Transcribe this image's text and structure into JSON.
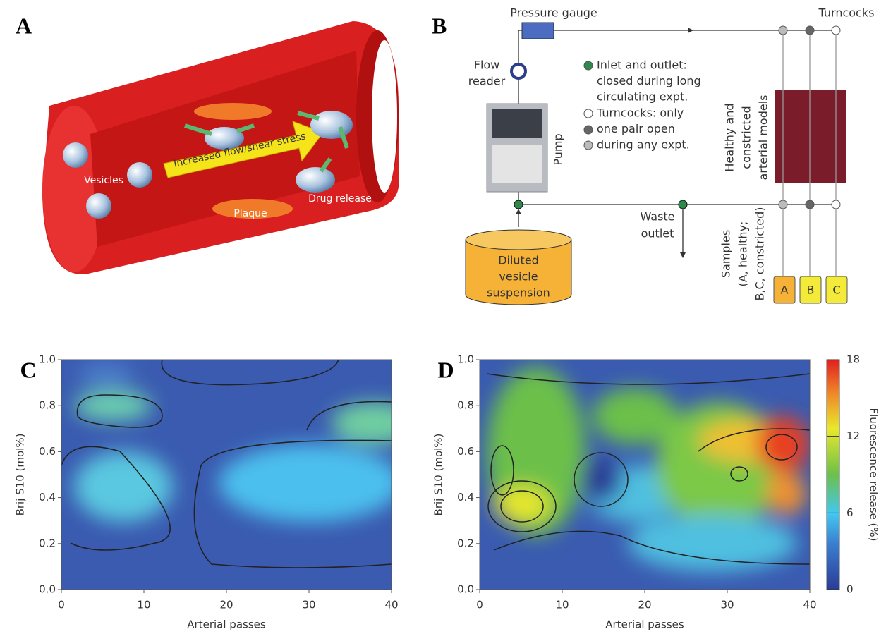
{
  "panel_a": {
    "label": "A",
    "vesicles": "Vesicles",
    "flow": "Increased flow/shear stress",
    "plaque": "Plaque",
    "drug": "Drug release"
  },
  "panel_b": {
    "label": "B",
    "pressure_gauge": "Pressure gauge",
    "turncocks": "Turncocks",
    "flow_reader": [
      "Flow",
      "reader"
    ],
    "pump": "Pump",
    "legend": [
      "Inlet and outlet:",
      "closed during long",
      "circulating expt.",
      "Turncocks: only",
      "one pair open",
      "during any expt."
    ],
    "models": [
      "Healthy and",
      "constricted",
      "arterial models"
    ],
    "waste": [
      "Waste",
      "outlet"
    ],
    "reservoir": [
      "Diluted",
      "vesicle",
      "suspension"
    ],
    "samples": [
      "Samples",
      "(A, healthy;",
      "B,C, constricted)"
    ],
    "sample_labels": [
      "A",
      "B",
      "C"
    ]
  },
  "chart_data": [
    {
      "type": "heatmap",
      "label": "C",
      "xlabel": "Arterial passes",
      "ylabel": "Brij S10 (mol%)",
      "xlim": [
        0,
        40
      ],
      "ylim": [
        0,
        1
      ],
      "xticks": [
        0,
        10,
        20,
        30,
        40
      ],
      "yticks": [
        {
          "value": 0,
          "label": "0.0"
        },
        {
          "value": 0.2,
          "label": "0.2"
        },
        {
          "value": 0.4,
          "label": "0.4"
        },
        {
          "value": 0.6,
          "label": "0.6"
        },
        {
          "value": 0.8,
          "label": "0.8"
        },
        {
          "value": 1,
          "label": "1.0"
        }
      ]
    },
    {
      "type": "heatmap",
      "label": "D",
      "xlabel": "Arterial passes",
      "ylabel": "Brij S10 (mol%)",
      "xlim": [
        0,
        40
      ],
      "ylim": [
        0,
        1
      ],
      "xticks": [
        0,
        10,
        20,
        30,
        40
      ],
      "yticks": [
        {
          "value": 0,
          "label": "0.0"
        },
        {
          "value": 0.2,
          "label": "0.2"
        },
        {
          "value": 0.4,
          "label": "0.4"
        },
        {
          "value": 0.6,
          "label": "0.6"
        },
        {
          "value": 0.8,
          "label": "0.8"
        },
        {
          "value": 1,
          "label": "1.0"
        }
      ],
      "colorbar": {
        "label": "Fluorescence release (%)",
        "lim": [
          0,
          18
        ],
        "ticks": [
          0,
          6,
          12,
          18
        ]
      }
    }
  ]
}
